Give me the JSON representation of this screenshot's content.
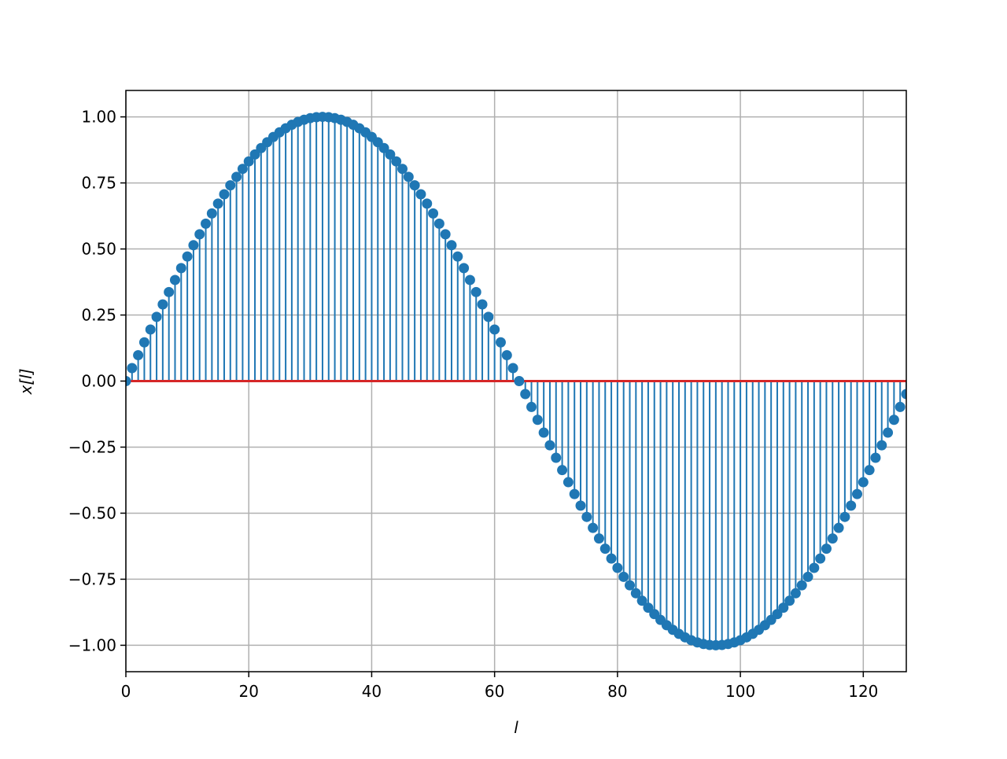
{
  "chart_data": {
    "type": "stem",
    "title": "",
    "xlabel": "l",
    "ylabel": "x[l]",
    "xlim": [
      0,
      127
    ],
    "ylim": [
      -1.1,
      1.1
    ],
    "grid": true,
    "xticks": [
      0,
      20,
      40,
      60,
      80,
      100,
      120
    ],
    "xtick_labels": [
      "0",
      "20",
      "40",
      "60",
      "80",
      "100",
      "120"
    ],
    "yticks": [
      1.0,
      0.75,
      0.5,
      0.25,
      0.0,
      -0.25,
      -0.5,
      -0.75,
      -1.0
    ],
    "ytick_labels": [
      "1.00",
      "0.75",
      "0.50",
      "0.25",
      "0.00",
      "−0.25",
      "−0.50",
      "−0.75",
      "−1.00"
    ],
    "stem_color": "#1f77b4",
    "baseline_color": "#d62728",
    "baseline_value": 0,
    "x_start": 0,
    "values": [
      0,
      0.0491,
      0.098,
      0.1467,
      0.1951,
      0.243,
      0.2903,
      0.3369,
      0.3827,
      0.4276,
      0.4714,
      0.5141,
      0.5556,
      0.5957,
      0.6344,
      0.6716,
      0.7071,
      0.741,
      0.773,
      0.8032,
      0.8315,
      0.8577,
      0.8819,
      0.904,
      0.9239,
      0.9415,
      0.9569,
      0.97,
      0.9808,
      0.9892,
      0.9952,
      0.9988,
      1,
      0.9988,
      0.9952,
      0.9892,
      0.9808,
      0.97,
      0.9569,
      0.9415,
      0.9239,
      0.904,
      0.8819,
      0.8577,
      0.8315,
      0.8032,
      0.773,
      0.741,
      0.7071,
      0.6716,
      0.6344,
      0.5957,
      0.5556,
      0.5141,
      0.4714,
      0.4276,
      0.3827,
      0.3369,
      0.2903,
      0.243,
      0.1951,
      0.1467,
      0.098,
      0.0491,
      0,
      -0.0491,
      -0.098,
      -0.1467,
      -0.1951,
      -0.243,
      -0.2903,
      -0.3369,
      -0.3827,
      -0.4276,
      -0.4714,
      -0.5141,
      -0.5556,
      -0.5957,
      -0.6344,
      -0.6716,
      -0.7071,
      -0.741,
      -0.773,
      -0.8032,
      -0.8315,
      -0.8577,
      -0.8819,
      -0.904,
      -0.9239,
      -0.9415,
      -0.9569,
      -0.97,
      -0.9808,
      -0.9892,
      -0.9952,
      -0.9988,
      -1,
      -0.9988,
      -0.9952,
      -0.9892,
      -0.9808,
      -0.97,
      -0.9569,
      -0.9415,
      -0.9239,
      -0.904,
      -0.8819,
      -0.8577,
      -0.8315,
      -0.8032,
      -0.773,
      -0.741,
      -0.7071,
      -0.6716,
      -0.6344,
      -0.5957,
      -0.5556,
      -0.5141,
      -0.4714,
      -0.4276,
      -0.3827,
      -0.3369,
      -0.2903,
      -0.243,
      -0.1951,
      -0.1467,
      -0.098,
      -0.0491
    ]
  }
}
